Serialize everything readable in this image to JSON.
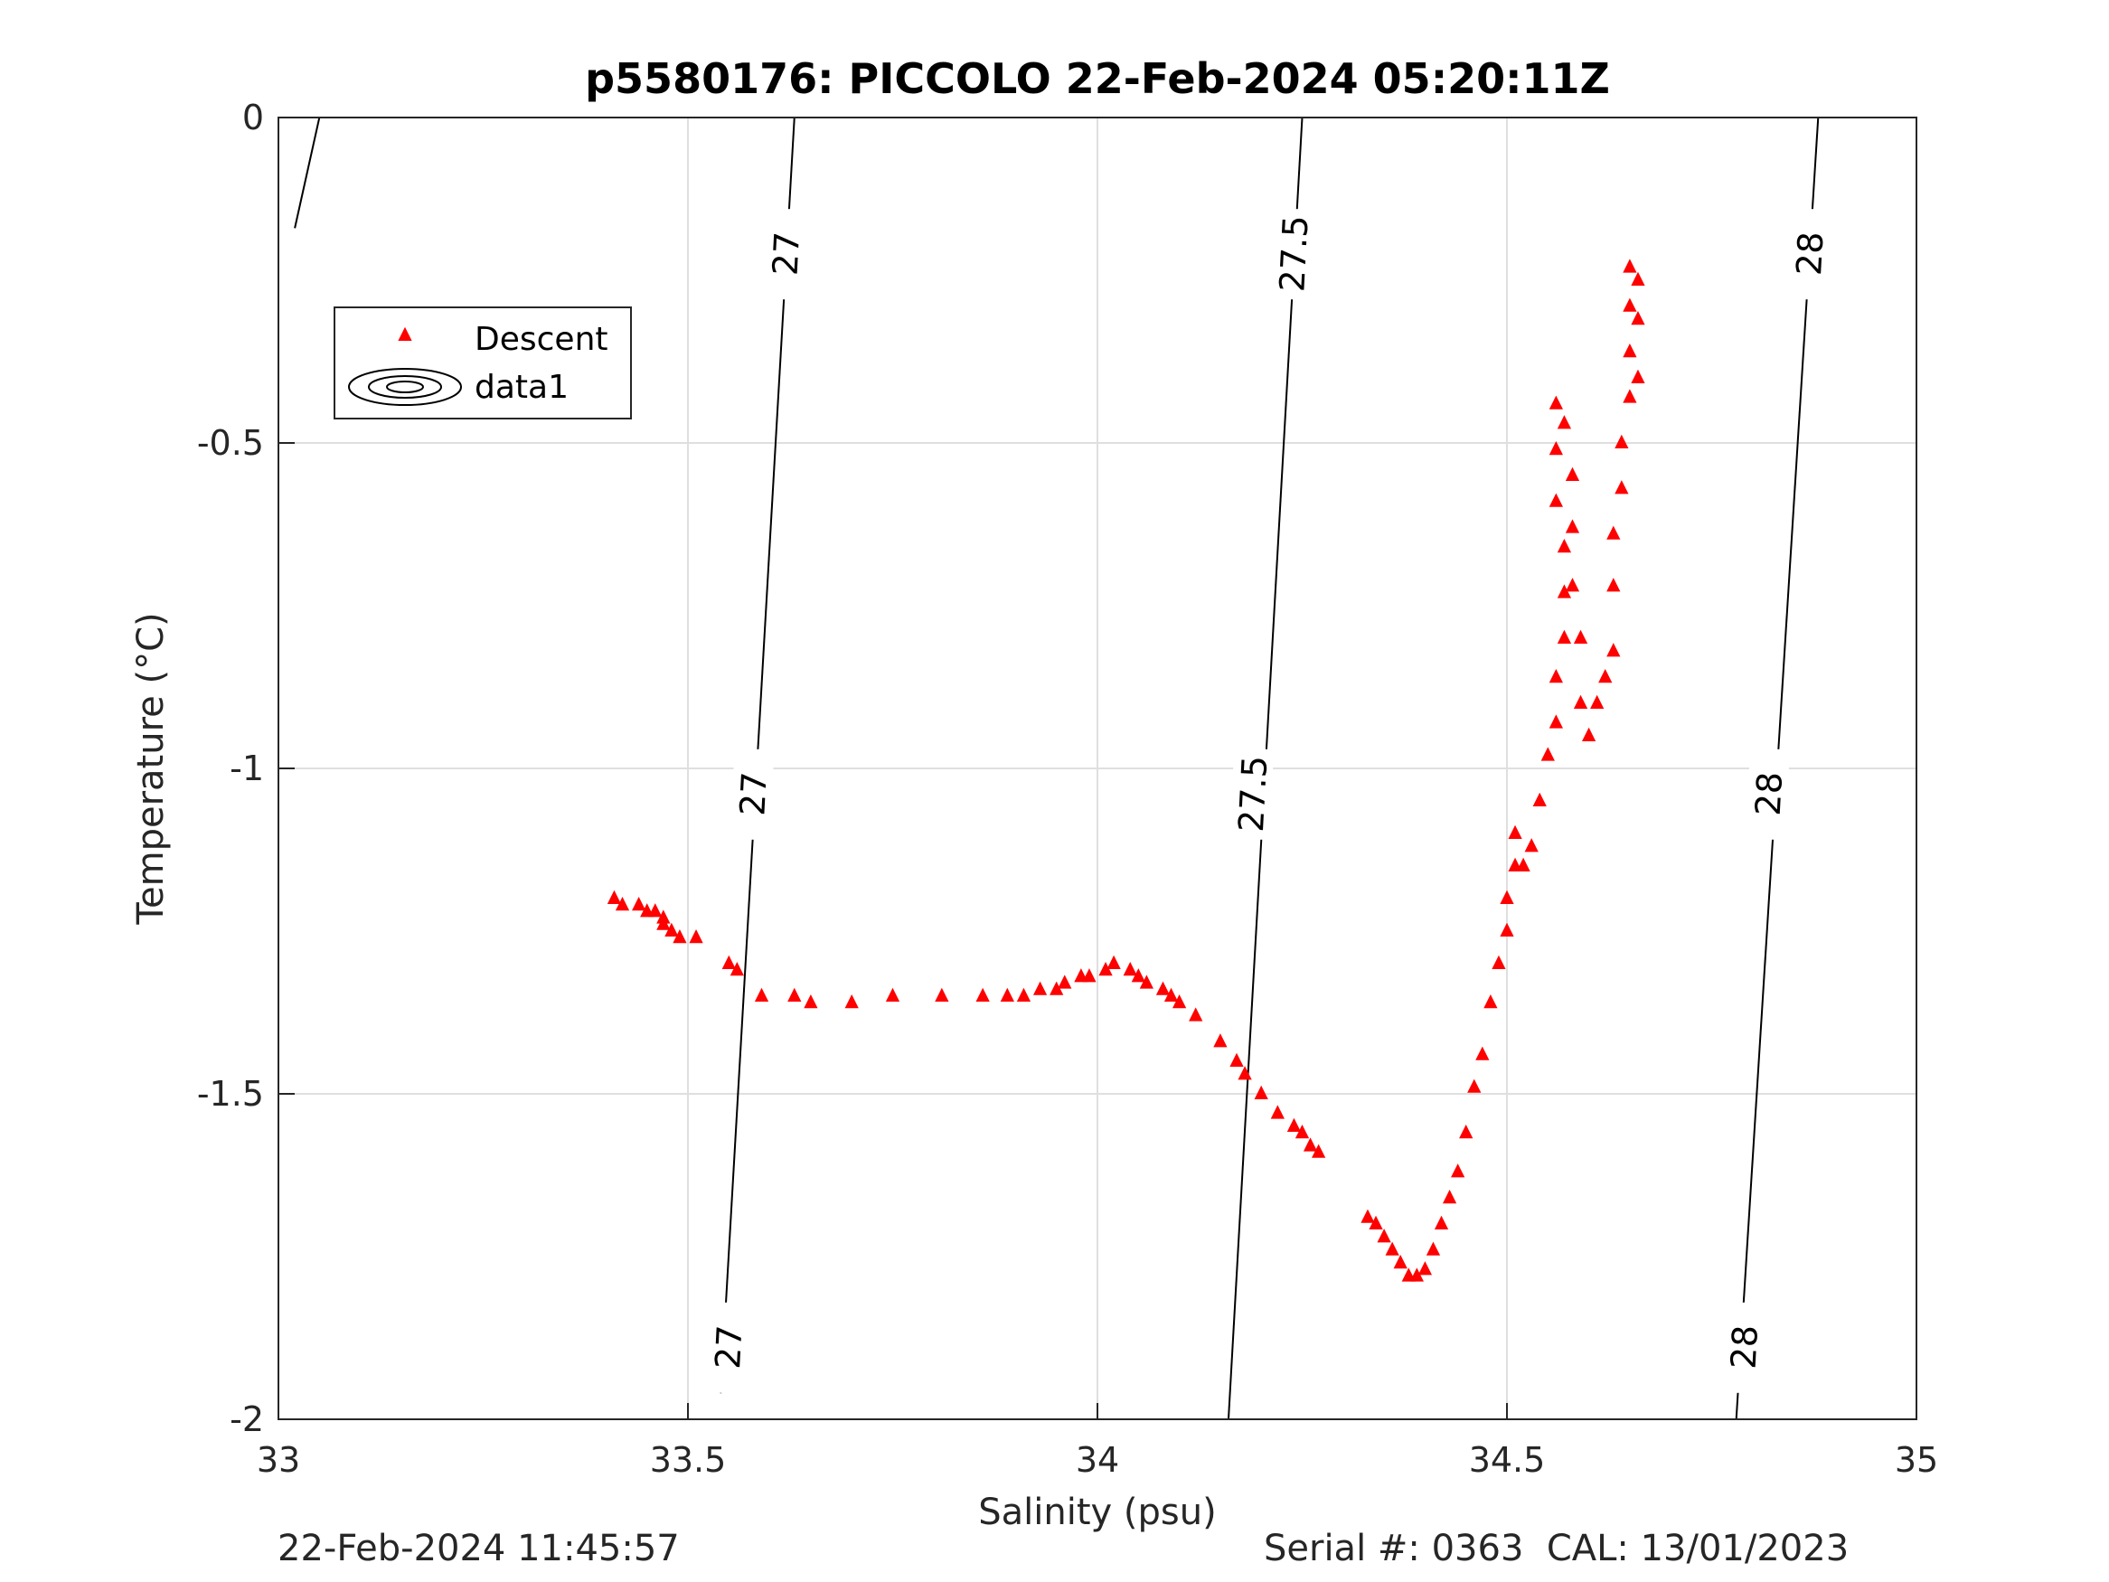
{
  "chart_data": {
    "type": "scatter",
    "title": "p5580176: PICCOLO 22-Feb-2024 05:20:11Z",
    "xlabel": "Salinity (psu)",
    "ylabel": "Temperature (°C)",
    "xlim": [
      33,
      35
    ],
    "ylim": [
      -2,
      0
    ],
    "xticks": [
      33,
      33.5,
      34,
      34.5,
      35
    ],
    "xtick_labels": [
      "33",
      "33.5",
      "34",
      "34.5",
      "35"
    ],
    "yticks": [
      0,
      -0.5,
      -1,
      -1.5,
      -2
    ],
    "ytick_labels": [
      "0",
      "-0.5",
      "-1",
      "-1.5",
      "-2"
    ],
    "grid": true,
    "legend_position": "top-left",
    "series": [
      {
        "name": "Descent",
        "marker": "triangle",
        "color": "#ff0000",
        "points": [
          [
            33.41,
            -1.2
          ],
          [
            33.42,
            -1.21
          ],
          [
            33.44,
            -1.21
          ],
          [
            33.45,
            -1.22
          ],
          [
            33.46,
            -1.22
          ],
          [
            33.47,
            -1.23
          ],
          [
            33.47,
            -1.24
          ],
          [
            33.48,
            -1.25
          ],
          [
            33.49,
            -1.26
          ],
          [
            33.51,
            -1.26
          ],
          [
            33.55,
            -1.3
          ],
          [
            33.56,
            -1.31
          ],
          [
            33.59,
            -1.35
          ],
          [
            33.63,
            -1.35
          ],
          [
            33.65,
            -1.36
          ],
          [
            33.7,
            -1.36
          ],
          [
            33.75,
            -1.35
          ],
          [
            33.81,
            -1.35
          ],
          [
            33.86,
            -1.35
          ],
          [
            33.89,
            -1.35
          ],
          [
            33.91,
            -1.35
          ],
          [
            33.93,
            -1.34
          ],
          [
            33.95,
            -1.34
          ],
          [
            33.96,
            -1.33
          ],
          [
            33.98,
            -1.32
          ],
          [
            33.99,
            -1.32
          ],
          [
            34.01,
            -1.31
          ],
          [
            34.02,
            -1.3
          ],
          [
            34.04,
            -1.31
          ],
          [
            34.05,
            -1.32
          ],
          [
            34.06,
            -1.33
          ],
          [
            34.08,
            -1.34
          ],
          [
            34.09,
            -1.35
          ],
          [
            34.1,
            -1.36
          ],
          [
            34.12,
            -1.38
          ],
          [
            34.15,
            -1.42
          ],
          [
            34.17,
            -1.45
          ],
          [
            34.18,
            -1.47
          ],
          [
            34.2,
            -1.5
          ],
          [
            34.22,
            -1.53
          ],
          [
            34.24,
            -1.55
          ],
          [
            34.25,
            -1.56
          ],
          [
            34.26,
            -1.58
          ],
          [
            34.27,
            -1.59
          ],
          [
            34.33,
            -1.69
          ],
          [
            34.34,
            -1.7
          ],
          [
            34.35,
            -1.72
          ],
          [
            34.36,
            -1.74
          ],
          [
            34.37,
            -1.76
          ],
          [
            34.38,
            -1.78
          ],
          [
            34.39,
            -1.78
          ],
          [
            34.4,
            -1.77
          ],
          [
            34.41,
            -1.74
          ],
          [
            34.42,
            -1.7
          ],
          [
            34.43,
            -1.66
          ],
          [
            34.44,
            -1.62
          ],
          [
            34.45,
            -1.56
          ],
          [
            34.46,
            -1.49
          ],
          [
            34.47,
            -1.44
          ],
          [
            34.48,
            -1.36
          ],
          [
            34.49,
            -1.3
          ],
          [
            34.5,
            -1.25
          ],
          [
            34.5,
            -1.2
          ],
          [
            34.51,
            -1.15
          ],
          [
            34.51,
            -1.1
          ],
          [
            34.52,
            -1.15
          ],
          [
            34.53,
            -1.12
          ],
          [
            34.54,
            -1.05
          ],
          [
            34.55,
            -0.98
          ],
          [
            34.56,
            -0.93
          ],
          [
            34.56,
            -0.86
          ],
          [
            34.57,
            -0.8
          ],
          [
            34.57,
            -0.73
          ],
          [
            34.57,
            -0.66
          ],
          [
            34.56,
            -0.59
          ],
          [
            34.56,
            -0.51
          ],
          [
            34.56,
            -0.44
          ],
          [
            34.57,
            -0.47
          ],
          [
            34.58,
            -0.55
          ],
          [
            34.58,
            -0.63
          ],
          [
            34.58,
            -0.72
          ],
          [
            34.59,
            -0.8
          ],
          [
            34.59,
            -0.9
          ],
          [
            34.6,
            -0.95
          ],
          [
            34.61,
            -0.9
          ],
          [
            34.62,
            -0.86
          ],
          [
            34.63,
            -0.82
          ],
          [
            34.63,
            -0.72
          ],
          [
            34.63,
            -0.64
          ],
          [
            34.64,
            -0.57
          ],
          [
            34.64,
            -0.5
          ],
          [
            34.65,
            -0.43
          ],
          [
            34.65,
            -0.36
          ],
          [
            34.65,
            -0.29
          ],
          [
            34.65,
            -0.23
          ],
          [
            34.66,
            -0.25
          ],
          [
            34.66,
            -0.31
          ],
          [
            34.66,
            -0.4
          ]
        ]
      },
      {
        "name": "data1",
        "marker": "contour",
        "color": "#000000"
      }
    ],
    "contours": [
      {
        "level": "27",
        "points": [
          [
            33.02,
            -0.17
          ],
          [
            33.05,
            0
          ],
          [
            33.54,
            -1.96
          ],
          [
            33.63,
            0
          ]
        ]
      },
      {
        "level": "27.5",
        "points": [
          [
            34.16,
            -2
          ],
          [
            34.25,
            0
          ]
        ]
      },
      {
        "level": "28",
        "points": [
          [
            34.78,
            -2
          ],
          [
            34.88,
            0
          ]
        ]
      }
    ],
    "contour_labels": [
      {
        "text": "27",
        "x": 33.62,
        "y": -0.21
      },
      {
        "text": "27",
        "x": 33.58,
        "y": -1.04
      },
      {
        "text": "27",
        "x": 33.55,
        "y": -1.89
      },
      {
        "text": "27.5",
        "x": 34.24,
        "y": -0.21
      },
      {
        "text": "27.5",
        "x": 34.19,
        "y": -1.04
      },
      {
        "text": "28",
        "x": 34.87,
        "y": -0.21
      },
      {
        "text": "28",
        "x": 34.82,
        "y": -1.04
      },
      {
        "text": "28",
        "x": 34.79,
        "y": -1.89
      }
    ]
  },
  "footer": {
    "timestamp": "22-Feb-2024 11:45:57",
    "serial_cal": "Serial #: 0363  CAL: 13/01/2023"
  }
}
